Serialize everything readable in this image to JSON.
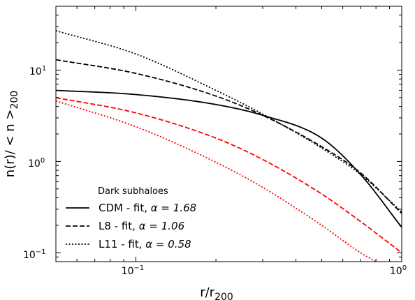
{
  "chart_data": {
    "type": "line",
    "xscale": "log",
    "yscale": "log",
    "xlim": [
      0.05,
      1.0
    ],
    "ylim": [
      0.08,
      50
    ],
    "xlabel": "r/r",
    "xlabel_sub": "200",
    "ylabel": "n(r)/ < n >",
    "ylabel_sub": "200",
    "x_tick_labels": [
      "10",
      "10"
    ],
    "x_tick_exponents": [
      "−1",
      "0"
    ],
    "y_tick_labels": [
      "10",
      "10",
      "10"
    ],
    "y_tick_exponents": [
      "−1",
      "0",
      "1"
    ],
    "legend_title": "Dark subhaloes",
    "legend_position": "lower-left",
    "legend": [
      {
        "label": "CDM - fit, ",
        "alpha_text": "α = 1.68",
        "style": "solid"
      },
      {
        "label": "L8 - fit, ",
        "alpha_text": "α = 1.06",
        "style": "dashed"
      },
      {
        "label": "L11 - fit, ",
        "alpha_text": "α = 0.58",
        "style": "dotted"
      }
    ],
    "series": [
      {
        "name": "CDM - fit, α = 1.68",
        "style": "solid",
        "color": "#000000",
        "x": [
          0.05,
          0.1,
          0.2,
          0.3,
          0.5,
          0.7,
          1.0
        ],
        "y": [
          6.0,
          5.4,
          4.2,
          3.2,
          1.8,
          0.72,
          0.19
        ]
      },
      {
        "name": "L8 - fit, α = 1.06",
        "style": "dashed",
        "color": "#000000",
        "x": [
          0.05,
          0.1,
          0.2,
          0.3,
          0.5,
          0.7,
          1.0
        ],
        "y": [
          13.0,
          9.2,
          5.2,
          3.2,
          1.45,
          0.75,
          0.27
        ]
      },
      {
        "name": "L11 - fit, α = 0.58",
        "style": "dotted",
        "color": "#000000",
        "x": [
          0.05,
          0.1,
          0.2,
          0.3,
          0.5,
          0.7,
          1.0
        ],
        "y": [
          27.0,
          15.0,
          6.0,
          3.3,
          1.4,
          0.72,
          0.28
        ]
      },
      {
        "style": "dashed",
        "color": "#ff0000",
        "x": [
          0.05,
          0.1,
          0.2,
          0.3,
          0.5,
          0.7,
          1.0
        ],
        "y": [
          5.0,
          3.4,
          1.8,
          1.05,
          0.44,
          0.22,
          0.1
        ]
      },
      {
        "style": "dotted",
        "color": "#ff0000",
        "x": [
          0.05,
          0.1,
          0.2,
          0.3,
          0.5,
          0.7,
          0.8
        ],
        "y": [
          4.6,
          2.4,
          0.98,
          0.52,
          0.2,
          0.1,
          0.08
        ]
      }
    ]
  }
}
